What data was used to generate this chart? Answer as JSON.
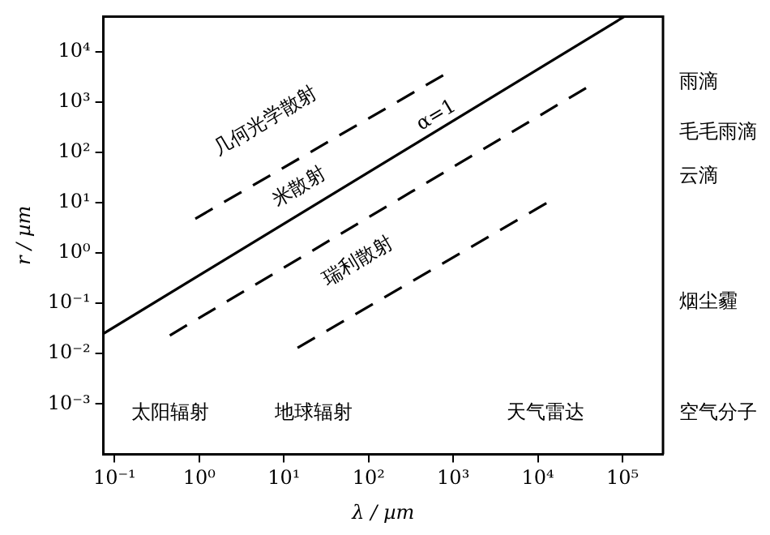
{
  "chart_data": {
    "type": "line",
    "xlabel": "λ / µm",
    "ylabel": "r / µm",
    "log": "xy",
    "grid": false,
    "legend": false,
    "marker": "none",
    "xlim": [
      0.074,
      300000
    ],
    "ylim": [
      0.0001,
      50000
    ],
    "xticks": [
      {
        "value": 0.1,
        "label": "10⁻¹"
      },
      {
        "value": 1,
        "label": "10⁰"
      },
      {
        "value": 10,
        "label": "10¹"
      },
      {
        "value": 100,
        "label": "10²"
      },
      {
        "value": 1000,
        "label": "10³"
      },
      {
        "value": 10000,
        "label": "10⁴"
      },
      {
        "value": 100000,
        "label": "10⁵"
      }
    ],
    "yticks": [
      {
        "value": 0.001,
        "label": "10⁻³"
      },
      {
        "value": 0.01,
        "label": "10⁻²"
      },
      {
        "value": 0.1,
        "label": "10⁻¹"
      },
      {
        "value": 1,
        "label": "10⁰"
      },
      {
        "value": 10,
        "label": "10¹"
      },
      {
        "value": 100,
        "label": "10²"
      },
      {
        "value": 1000,
        "label": "10³"
      },
      {
        "value": 10000,
        "label": "10⁴"
      }
    ],
    "series": [
      {
        "color": "#000000",
        "line_style": "solid",
        "x": [
          0.074,
          105000
        ],
        "values": [
          0.025,
          50000
        ]
      },
      {
        "color": "#000000",
        "line_style": "dashed",
        "x": [
          0.9,
          760
        ],
        "values": [
          4.8,
          3400
        ]
      },
      {
        "color": "#000000",
        "line_style": "dashed",
        "x": [
          0.45,
          37000
        ],
        "values": [
          0.023,
          1900
        ]
      },
      {
        "color": "#000000",
        "line_style": "dashed",
        "x": [
          14.5,
          12600
        ],
        "values": [
          0.013,
          9.8
        ]
      }
    ],
    "annotations": [
      "几何光学散射",
      "米散射",
      "瑞利散射",
      {
        "text": "α=1",
        "x": 760,
        "y": 320
      },
      "太阳辐射",
      "地球辐射",
      "天气雷达",
      "雨滴",
      "毛毛雨滴",
      "云滴",
      "烟尘霾",
      "空气分子"
    ]
  }
}
